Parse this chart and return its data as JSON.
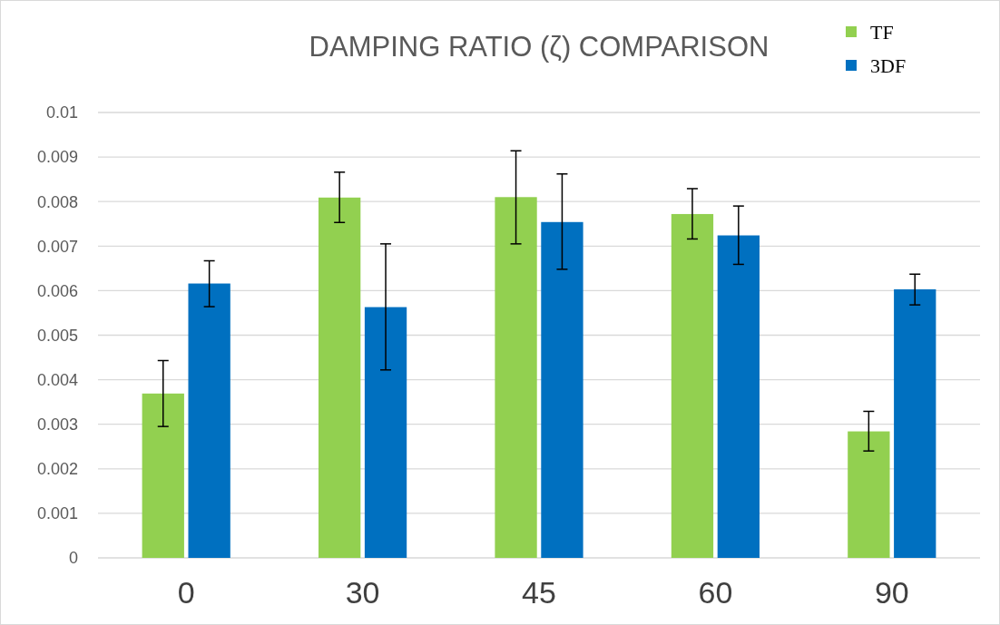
{
  "chart_data": {
    "type": "bar",
    "title": "DAMPING RATIO (ζ) COMPARISON",
    "categories": [
      "0",
      "30",
      "45",
      "60",
      "90"
    ],
    "series": [
      {
        "name": "TF",
        "color": "#92d050",
        "values": [
          0.00369,
          0.00809,
          0.0081,
          0.00772,
          0.00284
        ],
        "errors": [
          [
            0.00295,
            0.00443
          ],
          [
            0.00753,
            0.00866
          ],
          [
            0.00705,
            0.00914
          ],
          [
            0.00716,
            0.00829
          ],
          [
            0.0024,
            0.00329
          ]
        ]
      },
      {
        "name": "3DF",
        "color": "#0070c0",
        "values": [
          0.00616,
          0.00563,
          0.00754,
          0.00724,
          0.00603
        ],
        "errors": [
          [
            0.00564,
            0.00667
          ],
          [
            0.00422,
            0.00705
          ],
          [
            0.00648,
            0.00862
          ],
          [
            0.00659,
            0.0079
          ],
          [
            0.00568,
            0.00637
          ]
        ]
      }
    ],
    "ylim": [
      0,
      0.01
    ],
    "yticks": [
      0,
      0.001,
      0.002,
      0.003,
      0.004,
      0.005,
      0.006,
      0.007,
      0.008,
      0.009,
      0.01
    ],
    "grid": "y",
    "legend": "top right"
  }
}
